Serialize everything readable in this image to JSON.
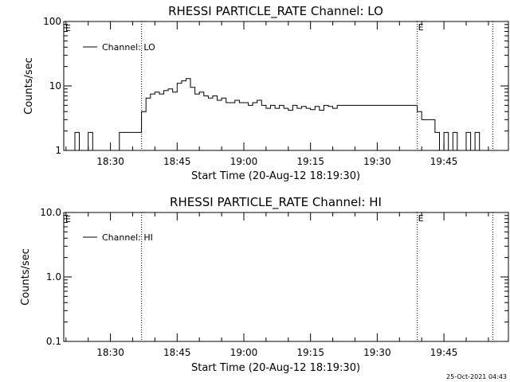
{
  "footer_timestamp": "25-Oct-2021 04:43",
  "chart_data": [
    {
      "type": "line",
      "title": "RHESSI PARTICLE_RATE Channel: LO",
      "xlabel": "Start Time (20-Aug-12 18:19:30)",
      "ylabel": "Counts/sec",
      "yscale": "log",
      "ylim": [
        1,
        100
      ],
      "xlim_minutes_clock": [
        "18:21",
        "19:55"
      ],
      "ytick_labels": [
        "1",
        "10",
        "100"
      ],
      "xtick_labels": [
        "18:30",
        "18:45",
        "19:00",
        "19:15",
        "19:30",
        "19:45"
      ],
      "legend": {
        "position": "top-left",
        "entries": [
          "Channel: LO"
        ]
      },
      "markers": [
        {
          "time": "18:37",
          "label": ""
        },
        {
          "time": "19:39",
          "label": "E"
        },
        {
          "time": "19:56",
          "label": ""
        }
      ],
      "start_marker_label": "E",
      "series": [
        {
          "name": "Channel: LO",
          "x": [
            "18:21",
            "18:22",
            "18:23",
            "18:24",
            "18:25",
            "18:26",
            "18:27",
            "18:28",
            "18:29",
            "18:30",
            "18:31",
            "18:32",
            "18:33",
            "18:34",
            "18:35",
            "18:36",
            "18:37",
            "18:38",
            "18:39",
            "18:40",
            "18:41",
            "18:42",
            "18:43",
            "18:44",
            "18:45",
            "18:46",
            "18:47",
            "18:48",
            "18:49",
            "18:50",
            "18:51",
            "18:52",
            "18:53",
            "18:54",
            "18:55",
            "18:56",
            "18:57",
            "18:58",
            "18:59",
            "19:00",
            "19:01",
            "19:02",
            "19:03",
            "19:04",
            "19:05",
            "19:06",
            "19:07",
            "19:08",
            "19:09",
            "19:10",
            "19:11",
            "19:12",
            "19:13",
            "19:14",
            "19:15",
            "19:16",
            "19:17",
            "19:18",
            "19:19",
            "19:20",
            "19:21",
            "19:22",
            "19:23",
            "19:24",
            "19:25",
            "19:26",
            "19:27",
            "19:28",
            "19:29",
            "19:30",
            "19:31",
            "19:32",
            "19:33",
            "19:34",
            "19:35",
            "19:36",
            "19:37",
            "19:38",
            "19:39",
            "19:40",
            "19:41",
            "19:42",
            "19:43",
            "19:44",
            "19:45",
            "19:46",
            "19:47",
            "19:48",
            "19:49",
            "19:50",
            "19:51",
            "19:52",
            "19:53"
          ],
          "values": [
            1,
            1.9,
            1,
            1,
            1.9,
            1,
            1,
            1,
            1,
            1,
            1,
            1.9,
            1.9,
            1.9,
            1.9,
            1.9,
            4,
            6.5,
            7.5,
            8,
            7.5,
            8.5,
            9,
            8,
            11,
            12,
            13,
            9.5,
            7.5,
            8,
            7,
            6.5,
            7,
            6,
            6.5,
            5.5,
            5.5,
            6,
            5.5,
            5.5,
            5,
            5.5,
            6,
            5,
            4.5,
            5,
            4.5,
            5,
            4.5,
            4.2,
            5,
            4.5,
            4.8,
            4.5,
            4.3,
            4.8,
            4.2,
            5,
            4.8,
            4.5,
            5,
            5,
            5,
            5,
            5,
            5,
            5,
            5,
            5,
            5,
            5,
            5,
            5,
            5,
            5,
            5,
            5,
            5,
            4,
            3,
            3,
            3,
            1.9,
            1,
            1.9,
            1,
            1.9,
            1,
            1,
            1.9,
            1,
            1.9,
            1
          ]
        }
      ]
    },
    {
      "type": "line",
      "title": "RHESSI PARTICLE_RATE Channel: HI",
      "xlabel": "Start Time (20-Aug-12 18:19:30)",
      "ylabel": "Counts/sec",
      "yscale": "log",
      "ylim": [
        0.1,
        10
      ],
      "ytick_labels": [
        "0.1",
        "1.0",
        "10.0"
      ],
      "xtick_labels": [
        "18:30",
        "18:45",
        "19:00",
        "19:15",
        "19:30",
        "19:45"
      ],
      "legend": {
        "position": "top-left",
        "entries": [
          "Channel: HI"
        ]
      },
      "markers": [
        {
          "time": "18:37",
          "label": ""
        },
        {
          "time": "19:39",
          "label": "E"
        },
        {
          "time": "19:56",
          "label": ""
        }
      ],
      "start_marker_label": "E",
      "series": [
        {
          "name": "Channel: HI",
          "x": [],
          "values": []
        }
      ]
    }
  ]
}
